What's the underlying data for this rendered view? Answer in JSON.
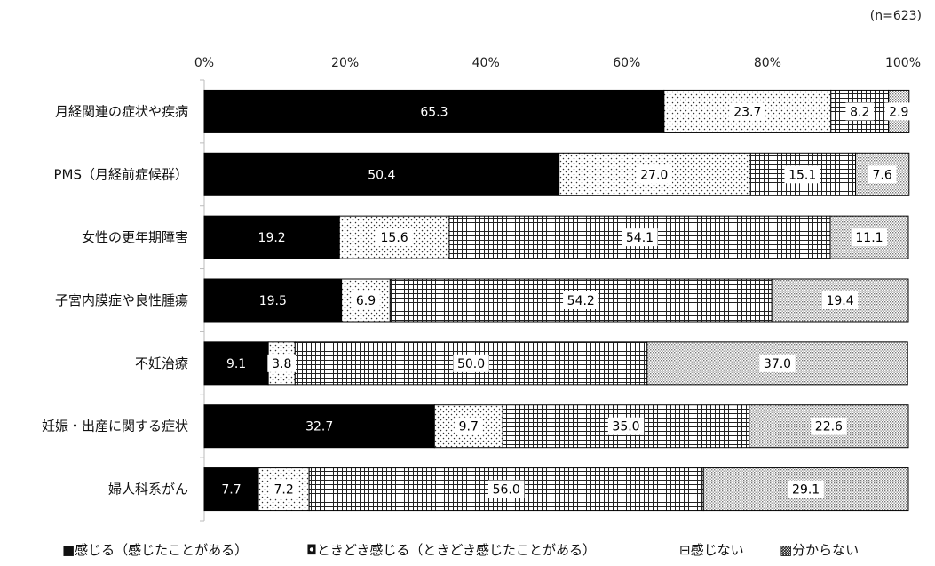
{
  "chart_data": {
    "type": "bar",
    "orientation": "horizontal",
    "stacked": true,
    "note": "(n=623)",
    "categories": [
      "月経関連の症状や疾病",
      "PMS（月経前症候群）",
      "女性の更年期障害",
      "子宮内膜症や良性腫瘍",
      "不妊治療",
      "妊娠・出産に関する症状",
      "婦人科系がん"
    ],
    "xlim": [
      0,
      100
    ],
    "xticks": [
      "0%",
      "20%",
      "40%",
      "60%",
      "80%",
      "100%"
    ],
    "grid": false,
    "legend_position": "bottom",
    "series": [
      {
        "name": "感じる（感じたことがある）",
        "values": [
          65.3,
          50.4,
          19.2,
          19.5,
          9.1,
          32.7,
          7.7
        ]
      },
      {
        "name": "ときどき感じる（ときどき感じたことがある）",
        "values": [
          23.7,
          27.0,
          15.6,
          6.9,
          3.8,
          9.7,
          7.2
        ]
      },
      {
        "name": "感じない",
        "values": [
          8.2,
          15.1,
          54.1,
          54.2,
          50.0,
          35.0,
          56.0
        ]
      },
      {
        "name": "分からない",
        "values": [
          2.9,
          7.6,
          11.1,
          19.4,
          37.0,
          22.6,
          29.1
        ]
      }
    ],
    "legend_markers": [
      "■",
      "◘",
      "⊟",
      "▩"
    ]
  }
}
